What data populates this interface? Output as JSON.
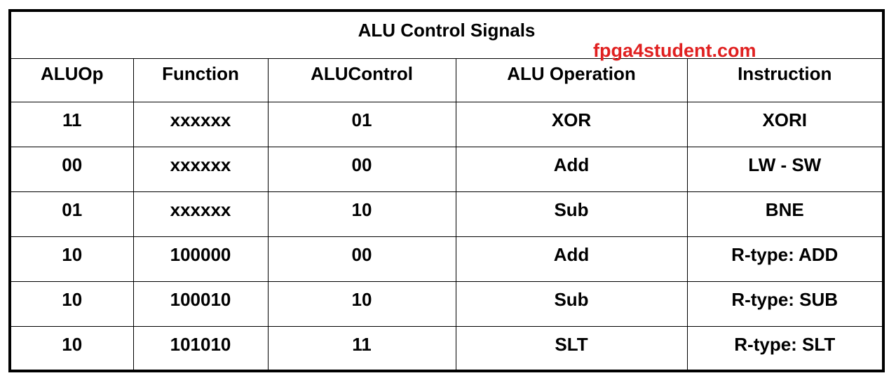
{
  "title": "ALU Control Signals",
  "watermark": "fpga4student.com",
  "columns": [
    "ALUOp",
    "Function",
    "ALUControl",
    "ALU Operation",
    "Instruction"
  ],
  "rows": [
    [
      "11",
      "xxxxxx",
      "01",
      "XOR",
      "XORI"
    ],
    [
      "00",
      "xxxxxx",
      "00",
      "Add",
      "LW - SW"
    ],
    [
      "01",
      "xxxxxx",
      "10",
      "Sub",
      "BNE"
    ],
    [
      "10",
      "100000",
      "00",
      "Add",
      "R-type: ADD"
    ],
    [
      "10",
      "100010",
      "10",
      "Sub",
      "R-type: SUB"
    ],
    [
      "10",
      "101010",
      "11",
      "SLT",
      "R-type: SLT"
    ]
  ],
  "colors": {
    "border": "#000000",
    "text": "#000000",
    "watermark": "#e02020"
  }
}
